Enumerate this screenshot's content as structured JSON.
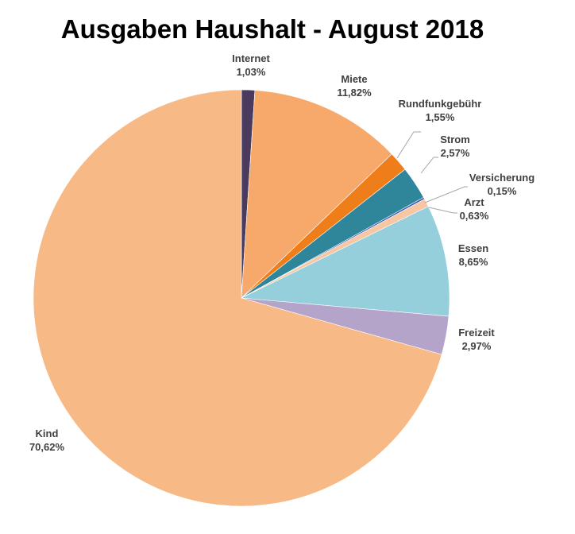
{
  "chart_data": {
    "type": "pie",
    "title": "Ausgaben Haushalt - August 2018",
    "slices": [
      {
        "name": "Internet",
        "label": "1,03%",
        "value": 1.03,
        "color": "#4a3a5e"
      },
      {
        "name": "Miete",
        "label": "11,82%",
        "value": 11.82,
        "color": "#f7a96b"
      },
      {
        "name": "Rundfunkgebühr",
        "label": "1,55%",
        "value": 1.55,
        "color": "#ef7d1a"
      },
      {
        "name": "Strom",
        "label": "2,57%",
        "value": 2.57,
        "color": "#2f8599"
      },
      {
        "name": "Versicherung",
        "label": "0,15%",
        "value": 0.15,
        "color": "#3a5bb0"
      },
      {
        "name": "Arzt",
        "label": "0,63%",
        "value": 0.63,
        "color": "#f7c6a2"
      },
      {
        "name": "Essen",
        "label": "8,65%",
        "value": 8.65,
        "color": "#96cfdc"
      },
      {
        "name": "Freizeit",
        "label": "2,97%",
        "value": 2.97,
        "color": "#b4a4c9"
      },
      {
        "name": "Kind",
        "label": "70,62%",
        "value": 70.62,
        "color": "#f7b986"
      }
    ]
  }
}
